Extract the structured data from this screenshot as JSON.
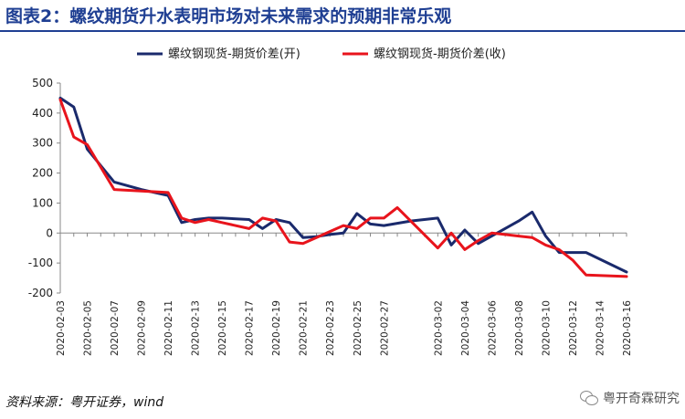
{
  "figure": {
    "title": "图表2：螺纹期货升水表明市场对未来需求的预期非常乐观",
    "source": "资料来源：粤开证券，wind",
    "watermark": "粤开奇霖研究",
    "watermark_icon": "wechat-icon"
  },
  "chart_data": {
    "type": "line",
    "title": "",
    "xlabel": "",
    "ylabel": "",
    "ylim": [
      -200,
      500
    ],
    "yticks": [
      -200,
      -100,
      0,
      100,
      200,
      300,
      400,
      500
    ],
    "grid": false,
    "legend_position": "top-center",
    "x_tick_labels": [
      "2020-02-03",
      "2020-02-05",
      "2020-02-07",
      "2020-02-09",
      "2020-02-11",
      "2020-02-13",
      "2020-02-15",
      "2020-02-17",
      "2020-02-19",
      "2020-02-21",
      "2020-02-23",
      "2020-02-25",
      "2020-02-27",
      "2020-03-02",
      "2020-03-04",
      "2020-03-06",
      "2020-03-08",
      "2020-03-10",
      "2020-03-12",
      "2020-03-14",
      "2020-03-16"
    ],
    "x": [
      "2020-02-03",
      "2020-02-04",
      "2020-02-05",
      "2020-02-06",
      "2020-02-07",
      "2020-02-08",
      "2020-02-09",
      "2020-02-10",
      "2020-02-11",
      "2020-02-12",
      "2020-02-13",
      "2020-02-14",
      "2020-02-15",
      "2020-02-16",
      "2020-02-17",
      "2020-02-18",
      "2020-02-19",
      "2020-02-20",
      "2020-02-21",
      "2020-02-22",
      "2020-02-23",
      "2020-02-24",
      "2020-02-25",
      "2020-02-26",
      "2020-02-27",
      "2020-02-28",
      "2020-02-29",
      "2020-03-01",
      "2020-03-02",
      "2020-03-03",
      "2020-03-04",
      "2020-03-05",
      "2020-03-06",
      "2020-03-07",
      "2020-03-08",
      "2020-03-09",
      "2020-03-10",
      "2020-03-11",
      "2020-03-12",
      "2020-03-13",
      "2020-03-14",
      "2020-03-15",
      "2020-03-16"
    ],
    "series": [
      {
        "name": "螺纹钢现货-期货价差(开)",
        "color": "#1a2a6c",
        "values": [
          450,
          420,
          280,
          null,
          170,
          null,
          145,
          null,
          125,
          35,
          45,
          50,
          50,
          null,
          45,
          15,
          45,
          35,
          -15,
          -12,
          -5,
          0,
          65,
          30,
          25,
          null,
          40,
          null,
          50,
          -40,
          10,
          -35,
          -10,
          null,
          40,
          70,
          -10,
          -65,
          -65,
          -65,
          null,
          null,
          -130
        ],
        "labels": [
          null,
          null,
          null,
          null,
          null,
          null,
          null,
          null,
          null,
          null,
          null,
          null,
          null,
          null,
          null,
          null,
          null,
          null,
          null,
          null,
          null,
          null,
          null,
          null,
          null,
          null,
          null,
          null,
          null,
          null,
          null,
          null,
          null,
          null,
          null,
          null,
          null,
          null,
          null,
          null,
          null,
          null,
          null
        ]
      },
      {
        "name": "螺纹钢现货-期货价差(收)",
        "color": "#e8141c",
        "values": [
          445,
          320,
          295,
          null,
          145,
          null,
          140,
          null,
          135,
          50,
          35,
          45,
          35,
          null,
          15,
          50,
          40,
          -30,
          -35,
          -15,
          5,
          25,
          15,
          50,
          50,
          85,
          null,
          null,
          -50,
          0,
          -55,
          -25,
          0,
          -5,
          -10,
          -15,
          -40,
          -55,
          -90,
          -140,
          null,
          null,
          -145
        ],
        "labels": [
          null,
          null,
          null,
          null,
          null,
          null,
          null,
          null,
          null,
          null,
          null,
          null,
          null,
          null,
          null,
          null,
          null,
          null,
          null,
          null,
          null,
          null,
          null,
          null,
          null,
          null,
          null,
          null,
          null,
          null,
          null,
          null,
          null,
          null,
          null,
          null,
          null,
          null,
          null,
          null,
          null,
          null,
          null
        ]
      }
    ]
  }
}
